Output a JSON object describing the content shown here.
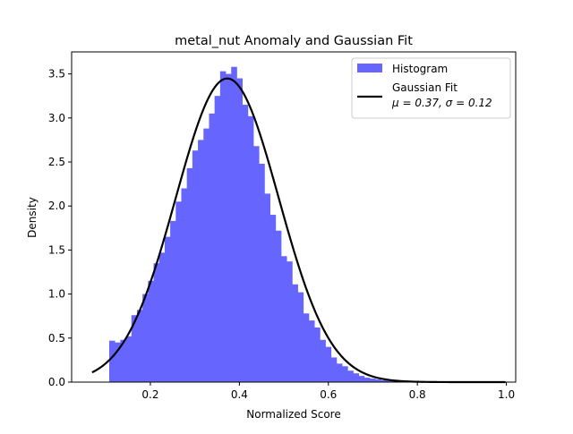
{
  "chart_data": {
    "type": "bar",
    "title": "metal_nut Anomaly and Gaussian Fit",
    "xlabel": "Normalized Score",
    "ylabel": "Density",
    "xlim": [
      0.023,
      1.021
    ],
    "ylim": [
      0.0,
      3.75
    ],
    "xticks": [
      0.2,
      0.4,
      0.6,
      0.8,
      1.0
    ],
    "xtick_labels": [
      "0.2",
      "0.4",
      "0.6",
      "0.8",
      "1.0"
    ],
    "yticks": [
      0.0,
      0.5,
      1.0,
      1.5,
      2.0,
      2.5,
      3.0,
      3.5
    ],
    "ytick_labels": [
      "0.0",
      "0.5",
      "1.0",
      "1.5",
      "2.0",
      "2.5",
      "3.0",
      "3.5"
    ],
    "grid": false,
    "legend_position": "top-right",
    "histogram": {
      "name": "Histogram",
      "color": "#6666ff",
      "bin_start": 0.1075,
      "bin_width": 0.01246,
      "densities": [
        0.47,
        0.45,
        0.48,
        0.52,
        0.76,
        0.82,
        1.0,
        1.15,
        1.35,
        1.47,
        1.65,
        1.83,
        2.05,
        2.2,
        2.43,
        2.63,
        2.75,
        2.88,
        3.05,
        3.25,
        3.53,
        3.5,
        3.58,
        3.45,
        3.15,
        3.02,
        2.68,
        2.48,
        2.14,
        1.9,
        1.72,
        1.43,
        1.37,
        1.11,
        1.02,
        0.78,
        0.7,
        0.62,
        0.48,
        0.4,
        0.28,
        0.21,
        0.18,
        0.13,
        0.1,
        0.07,
        0.05,
        0.04,
        0.03,
        0.02,
        0.015,
        0.01,
        0.008,
        0.006,
        0.005,
        0.004,
        0.003,
        0.002,
        0.002,
        0.001,
        0.001,
        0.001,
        0.0005,
        0.0005,
        0.0005,
        0.0003,
        0.0003,
        0.0003,
        0.0002,
        0.0002,
        0.0002,
        0.0001
      ]
    },
    "gaussian_fit": {
      "name_line1": "Gaussian Fit",
      "name_line2": "μ = 0.37,  σ = 0.12",
      "color": "#000000",
      "mu": 0.3727,
      "sigma": 0.1157,
      "x_start": 0.069,
      "x_end": 0.998
    },
    "legend": [
      {
        "label": "Histogram",
        "kind": "patch",
        "color": "#6666ff"
      },
      {
        "label": "Gaussian Fit",
        "label_line2": "μ = 0.37,  σ = 0.12",
        "kind": "line",
        "color": "#000000"
      }
    ]
  }
}
